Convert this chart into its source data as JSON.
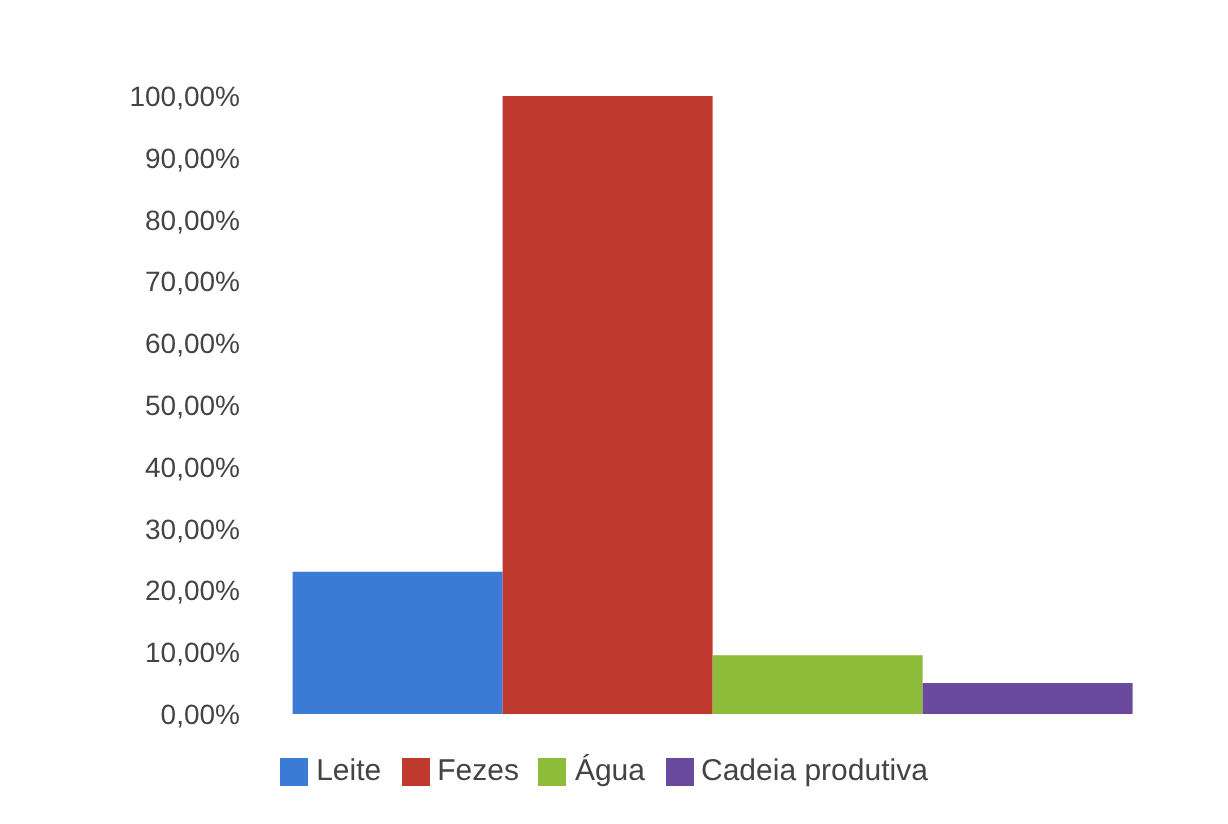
{
  "chart_data": {
    "type": "bar",
    "categories": [
      null
    ],
    "series": [
      {
        "name": "Leite",
        "color": "#3a7bd5",
        "values": [
          23
        ]
      },
      {
        "name": "Fezes",
        "color": "#c0392f",
        "values": [
          100
        ]
      },
      {
        "name": "Água",
        "color": "#8dbb3a",
        "values": [
          9.5
        ]
      },
      {
        "name": "Cadeia produtiva",
        "color": "#6a4a9c",
        "values": [
          5
        ]
      }
    ],
    "ylim": [
      0,
      100
    ],
    "yticks": [
      {
        "value": 0,
        "label": "0,00%"
      },
      {
        "value": 10,
        "label": "10,00%"
      },
      {
        "value": 20,
        "label": "20,00%"
      },
      {
        "value": 30,
        "label": "30,00%"
      },
      {
        "value": 40,
        "label": "40,00%"
      },
      {
        "value": 50,
        "label": "50,00%"
      },
      {
        "value": 60,
        "label": "60,00%"
      },
      {
        "value": 70,
        "label": "70,00%"
      },
      {
        "value": 80,
        "label": "80,00%"
      },
      {
        "value": 90,
        "label": "90,00%"
      },
      {
        "value": 100,
        "label": "100,00%"
      }
    ],
    "grid": false,
    "legend": "bottom"
  }
}
